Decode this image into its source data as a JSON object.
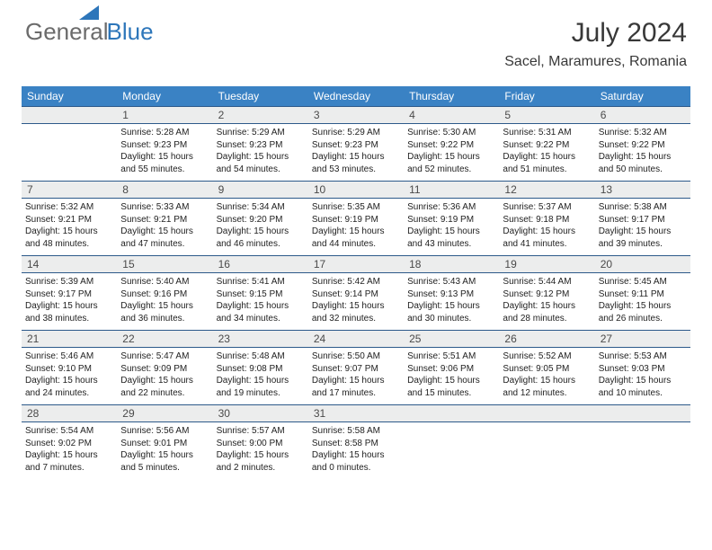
{
  "brand": {
    "name1": "General",
    "name2": "Blue"
  },
  "title": "July 2024",
  "location": "Sacel, Maramures, Romania",
  "headers": [
    "Sunday",
    "Monday",
    "Tuesday",
    "Wednesday",
    "Thursday",
    "Friday",
    "Saturday"
  ],
  "colors": {
    "header_bg": "#3a82c4",
    "header_text": "#ffffff",
    "daynum_bg": "#eceded",
    "border": "#2d5a8a",
    "logo_gray": "#6b6b6b",
    "logo_blue": "#2d76ba"
  },
  "weeks": [
    [
      {
        "n": "",
        "lines": []
      },
      {
        "n": "1",
        "lines": [
          "Sunrise: 5:28 AM",
          "Sunset: 9:23 PM",
          "Daylight: 15 hours",
          "and 55 minutes."
        ]
      },
      {
        "n": "2",
        "lines": [
          "Sunrise: 5:29 AM",
          "Sunset: 9:23 PM",
          "Daylight: 15 hours",
          "and 54 minutes."
        ]
      },
      {
        "n": "3",
        "lines": [
          "Sunrise: 5:29 AM",
          "Sunset: 9:23 PM",
          "Daylight: 15 hours",
          "and 53 minutes."
        ]
      },
      {
        "n": "4",
        "lines": [
          "Sunrise: 5:30 AM",
          "Sunset: 9:22 PM",
          "Daylight: 15 hours",
          "and 52 minutes."
        ]
      },
      {
        "n": "5",
        "lines": [
          "Sunrise: 5:31 AM",
          "Sunset: 9:22 PM",
          "Daylight: 15 hours",
          "and 51 minutes."
        ]
      },
      {
        "n": "6",
        "lines": [
          "Sunrise: 5:32 AM",
          "Sunset: 9:22 PM",
          "Daylight: 15 hours",
          "and 50 minutes."
        ]
      }
    ],
    [
      {
        "n": "7",
        "lines": [
          "Sunrise: 5:32 AM",
          "Sunset: 9:21 PM",
          "Daylight: 15 hours",
          "and 48 minutes."
        ]
      },
      {
        "n": "8",
        "lines": [
          "Sunrise: 5:33 AM",
          "Sunset: 9:21 PM",
          "Daylight: 15 hours",
          "and 47 minutes."
        ]
      },
      {
        "n": "9",
        "lines": [
          "Sunrise: 5:34 AM",
          "Sunset: 9:20 PM",
          "Daylight: 15 hours",
          "and 46 minutes."
        ]
      },
      {
        "n": "10",
        "lines": [
          "Sunrise: 5:35 AM",
          "Sunset: 9:19 PM",
          "Daylight: 15 hours",
          "and 44 minutes."
        ]
      },
      {
        "n": "11",
        "lines": [
          "Sunrise: 5:36 AM",
          "Sunset: 9:19 PM",
          "Daylight: 15 hours",
          "and 43 minutes."
        ]
      },
      {
        "n": "12",
        "lines": [
          "Sunrise: 5:37 AM",
          "Sunset: 9:18 PM",
          "Daylight: 15 hours",
          "and 41 minutes."
        ]
      },
      {
        "n": "13",
        "lines": [
          "Sunrise: 5:38 AM",
          "Sunset: 9:17 PM",
          "Daylight: 15 hours",
          "and 39 minutes."
        ]
      }
    ],
    [
      {
        "n": "14",
        "lines": [
          "Sunrise: 5:39 AM",
          "Sunset: 9:17 PM",
          "Daylight: 15 hours",
          "and 38 minutes."
        ]
      },
      {
        "n": "15",
        "lines": [
          "Sunrise: 5:40 AM",
          "Sunset: 9:16 PM",
          "Daylight: 15 hours",
          "and 36 minutes."
        ]
      },
      {
        "n": "16",
        "lines": [
          "Sunrise: 5:41 AM",
          "Sunset: 9:15 PM",
          "Daylight: 15 hours",
          "and 34 minutes."
        ]
      },
      {
        "n": "17",
        "lines": [
          "Sunrise: 5:42 AM",
          "Sunset: 9:14 PM",
          "Daylight: 15 hours",
          "and 32 minutes."
        ]
      },
      {
        "n": "18",
        "lines": [
          "Sunrise: 5:43 AM",
          "Sunset: 9:13 PM",
          "Daylight: 15 hours",
          "and 30 minutes."
        ]
      },
      {
        "n": "19",
        "lines": [
          "Sunrise: 5:44 AM",
          "Sunset: 9:12 PM",
          "Daylight: 15 hours",
          "and 28 minutes."
        ]
      },
      {
        "n": "20",
        "lines": [
          "Sunrise: 5:45 AM",
          "Sunset: 9:11 PM",
          "Daylight: 15 hours",
          "and 26 minutes."
        ]
      }
    ],
    [
      {
        "n": "21",
        "lines": [
          "Sunrise: 5:46 AM",
          "Sunset: 9:10 PM",
          "Daylight: 15 hours",
          "and 24 minutes."
        ]
      },
      {
        "n": "22",
        "lines": [
          "Sunrise: 5:47 AM",
          "Sunset: 9:09 PM",
          "Daylight: 15 hours",
          "and 22 minutes."
        ]
      },
      {
        "n": "23",
        "lines": [
          "Sunrise: 5:48 AM",
          "Sunset: 9:08 PM",
          "Daylight: 15 hours",
          "and 19 minutes."
        ]
      },
      {
        "n": "24",
        "lines": [
          "Sunrise: 5:50 AM",
          "Sunset: 9:07 PM",
          "Daylight: 15 hours",
          "and 17 minutes."
        ]
      },
      {
        "n": "25",
        "lines": [
          "Sunrise: 5:51 AM",
          "Sunset: 9:06 PM",
          "Daylight: 15 hours",
          "and 15 minutes."
        ]
      },
      {
        "n": "26",
        "lines": [
          "Sunrise: 5:52 AM",
          "Sunset: 9:05 PM",
          "Daylight: 15 hours",
          "and 12 minutes."
        ]
      },
      {
        "n": "27",
        "lines": [
          "Sunrise: 5:53 AM",
          "Sunset: 9:03 PM",
          "Daylight: 15 hours",
          "and 10 minutes."
        ]
      }
    ],
    [
      {
        "n": "28",
        "lines": [
          "Sunrise: 5:54 AM",
          "Sunset: 9:02 PM",
          "Daylight: 15 hours",
          "and 7 minutes."
        ]
      },
      {
        "n": "29",
        "lines": [
          "Sunrise: 5:56 AM",
          "Sunset: 9:01 PM",
          "Daylight: 15 hours",
          "and 5 minutes."
        ]
      },
      {
        "n": "30",
        "lines": [
          "Sunrise: 5:57 AM",
          "Sunset: 9:00 PM",
          "Daylight: 15 hours",
          "and 2 minutes."
        ]
      },
      {
        "n": "31",
        "lines": [
          "Sunrise: 5:58 AM",
          "Sunset: 8:58 PM",
          "Daylight: 15 hours",
          "and 0 minutes."
        ]
      },
      {
        "n": "",
        "lines": []
      },
      {
        "n": "",
        "lines": []
      },
      {
        "n": "",
        "lines": []
      }
    ]
  ]
}
